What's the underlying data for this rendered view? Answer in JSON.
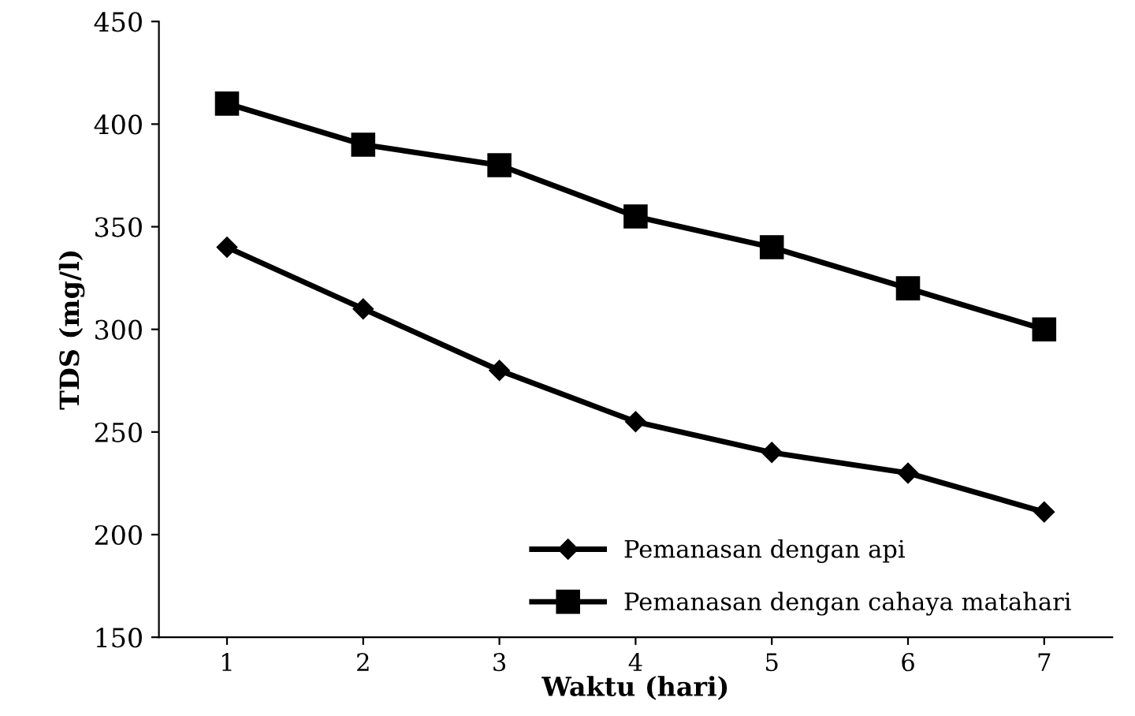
{
  "chart_data": {
    "type": "line",
    "xlabel": "Waktu (hari)",
    "ylabel": "TDS (mg/l)",
    "categories": [
      "1",
      "2",
      "3",
      "4",
      "5",
      "6",
      "7"
    ],
    "series": [
      {
        "name": "Pemanasan dengan api",
        "color": "#000000",
        "marker": "diamond",
        "values": [
          340,
          310,
          280,
          255,
          240,
          230,
          211
        ]
      },
      {
        "name": "Pemanasan dengan cahaya matahari",
        "color": "#000000",
        "marker": "square",
        "values": [
          410,
          390,
          380,
          355,
          340,
          320,
          300
        ]
      }
    ],
    "ylim": [
      150,
      450
    ],
    "yticks": [
      150,
      200,
      250,
      300,
      350,
      400,
      450
    ],
    "grid": false,
    "legend": "bottom right",
    "line_style": "solid"
  }
}
